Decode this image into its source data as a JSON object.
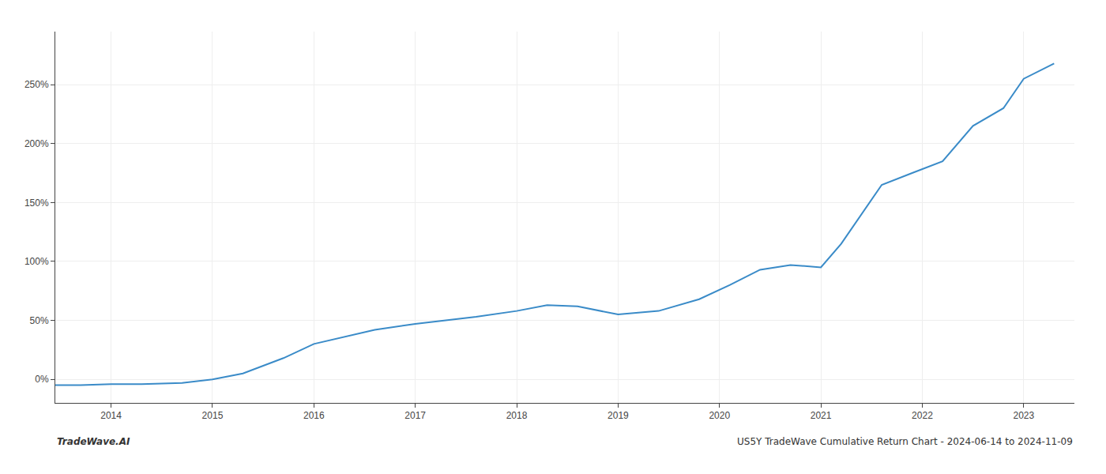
{
  "chart_data": {
    "type": "line",
    "x": [
      2013.45,
      2013.7,
      2014.0,
      2014.3,
      2014.7,
      2015.0,
      2015.3,
      2015.7,
      2016.0,
      2016.3,
      2016.6,
      2017.0,
      2017.3,
      2017.6,
      2018.0,
      2018.3,
      2018.6,
      2019.0,
      2019.4,
      2019.8,
      2020.1,
      2020.4,
      2020.7,
      2021.0,
      2021.2,
      2021.4,
      2021.6,
      2021.9,
      2022.2,
      2022.5,
      2022.8,
      2023.0,
      2023.3
    ],
    "values": [
      -5,
      -5,
      -4,
      -4,
      -3,
      0,
      5,
      18,
      30,
      36,
      42,
      47,
      50,
      53,
      58,
      63,
      62,
      55,
      58,
      68,
      80,
      93,
      97,
      95,
      115,
      140,
      165,
      175,
      185,
      215,
      230,
      255,
      268
    ],
    "color": "#3a8bc8",
    "xlim": [
      2013.45,
      2023.5
    ],
    "xticks": [
      2014,
      2015,
      2016,
      2017,
      2018,
      2019,
      2020,
      2021,
      2022,
      2023
    ],
    "ylim": [
      -20,
      295
    ],
    "yticks": [
      {
        "value": 0,
        "label": "0%"
      },
      {
        "value": 50,
        "label": "50%"
      },
      {
        "value": 100,
        "label": "100%"
      },
      {
        "value": 150,
        "label": "150%"
      },
      {
        "value": 200,
        "label": "200%"
      },
      {
        "value": 250,
        "label": "250%"
      }
    ],
    "grid": true,
    "annotations": [
      "TradeWave.AI",
      "US5Y TradeWave Cumulative Return Chart - 2024-06-14 to 2024-11-09"
    ]
  }
}
